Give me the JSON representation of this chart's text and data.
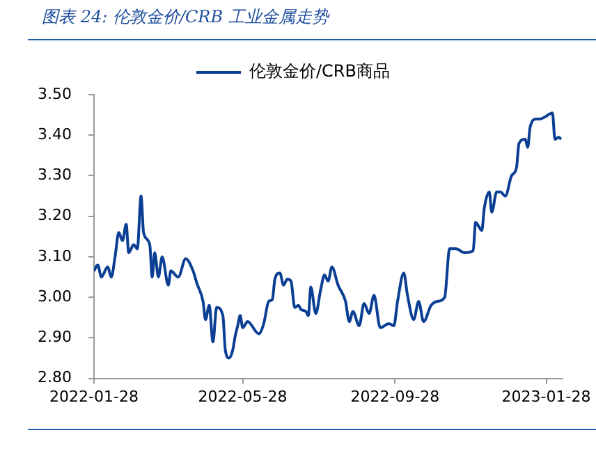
{
  "chart_data": {
    "type": "line",
    "title": "图表 24:  伦敦金价/CRB 工业金属走势",
    "x": [
      "2022-01-28",
      "2022-01-31",
      "2022-02-03",
      "2022-02-08",
      "2022-02-11",
      "2022-02-14",
      "2022-02-17",
      "2022-02-20",
      "2022-02-23",
      "2022-02-25",
      "2022-03-01",
      "2022-03-04",
      "2022-03-07",
      "2022-03-09",
      "2022-03-14",
      "2022-03-16",
      "2022-03-18",
      "2022-03-21",
      "2022-03-24",
      "2022-03-29",
      "2022-03-31",
      "2022-04-06",
      "2022-04-12",
      "2022-04-18",
      "2022-04-21",
      "2022-04-26",
      "2022-04-28",
      "2022-05-01",
      "2022-05-04",
      "2022-05-07",
      "2022-05-12",
      "2022-05-14",
      "2022-05-17",
      "2022-05-20",
      "2022-05-22",
      "2022-05-24",
      "2022-05-26",
      "2022-05-28",
      "2022-06-01",
      "2022-06-10",
      "2022-06-14",
      "2022-06-18",
      "2022-06-21",
      "2022-06-23",
      "2022-06-27",
      "2022-06-30",
      "2022-07-03",
      "2022-07-06",
      "2022-07-09",
      "2022-07-12",
      "2022-07-14",
      "2022-07-18",
      "2022-07-20",
      "2022-07-22",
      "2022-07-26",
      "2022-07-30",
      "2022-08-02",
      "2022-08-05",
      "2022-08-08",
      "2022-08-13",
      "2022-08-19",
      "2022-08-22",
      "2022-08-25",
      "2022-08-30",
      "2022-09-03",
      "2022-09-07",
      "2022-09-11",
      "2022-09-16",
      "2022-09-23",
      "2022-09-27",
      "2022-09-30",
      "2022-10-05",
      "2022-10-08",
      "2022-10-13",
      "2022-10-17",
      "2022-10-21",
      "2022-10-27",
      "2022-11-01",
      "2022-11-07",
      "2022-11-11",
      "2022-11-16",
      "2022-11-23",
      "2022-11-30",
      "2022-12-02",
      "2022-12-07",
      "2022-12-09",
      "2022-12-13",
      "2022-12-15",
      "2022-12-19",
      "2022-12-22",
      "2022-12-26",
      "2022-12-31",
      "2023-01-04",
      "2023-01-06",
      "2023-01-11",
      "2023-01-13",
      "2023-01-15",
      "2023-01-20",
      "2023-01-23",
      "2023-01-27",
      "2023-02-02",
      "2023-02-04",
      "2023-02-07",
      "2023-02-09"
    ],
    "series": [
      {
        "name": "伦敦金价/CRB商品",
        "color": "#0b3f94",
        "values": [
          3.065,
          3.08,
          3.05,
          3.075,
          3.05,
          3.1,
          3.16,
          3.14,
          3.18,
          3.11,
          3.13,
          3.12,
          3.25,
          3.16,
          3.13,
          3.05,
          3.11,
          3.05,
          3.1,
          3.03,
          3.065,
          3.05,
          3.095,
          3.065,
          3.035,
          2.99,
          2.945,
          2.98,
          2.89,
          2.975,
          2.955,
          2.87,
          2.85,
          2.87,
          2.905,
          2.93,
          2.955,
          2.925,
          2.94,
          2.91,
          2.935,
          2.99,
          2.995,
          3.045,
          3.06,
          3.03,
          3.045,
          3.04,
          2.975,
          2.98,
          2.97,
          2.965,
          2.955,
          3.025,
          2.96,
          3.02,
          3.055,
          3.04,
          3.075,
          3.03,
          2.99,
          2.94,
          2.965,
          2.93,
          2.985,
          2.96,
          3.005,
          2.925,
          2.935,
          2.93,
          2.99,
          3.06,
          3.005,
          2.945,
          2.99,
          2.94,
          2.98,
          2.99,
          3.0,
          3.12,
          3.12,
          3.11,
          3.115,
          3.185,
          3.165,
          3.22,
          3.26,
          3.21,
          3.26,
          3.26,
          3.25,
          3.3,
          3.32,
          3.38,
          3.39,
          3.37,
          3.42,
          3.44,
          3.44,
          3.445,
          3.455,
          3.39,
          3.395,
          3.39
        ]
      }
    ],
    "xlim": [
      "2022-01-28",
      "2023-02-10"
    ],
    "xticks": [
      "2022-01-28",
      "2022-05-28",
      "2022-09-28",
      "2023-01-28"
    ],
    "ylim": [
      2.8,
      3.5
    ],
    "yticks": [
      {
        "value": 2.8,
        "label": "2.80"
      },
      {
        "value": 2.9,
        "label": "2.90"
      },
      {
        "value": 3.0,
        "label": "3.00"
      },
      {
        "value": 3.1,
        "label": "3.10"
      },
      {
        "value": 3.2,
        "label": "3.20"
      },
      {
        "value": 3.3,
        "label": "3.30"
      },
      {
        "value": 3.4,
        "label": "3.40"
      },
      {
        "value": 3.5,
        "label": "3.50"
      }
    ],
    "grid": false,
    "legend": "top",
    "marker": "none",
    "line_style": "solid"
  }
}
